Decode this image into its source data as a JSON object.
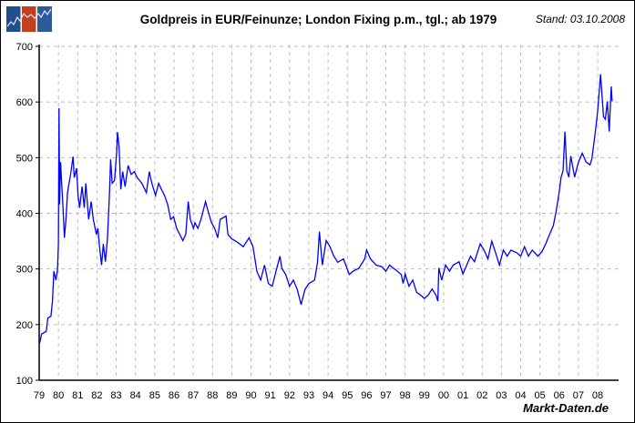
{
  "header": {
    "title": "Goldpreis in EUR/Feinunze; London Fixing p.m., tgl.; ab 1979",
    "stand": "Stand: 03.10.2008",
    "logo_colors": [
      "#1f4f8f",
      "#c0401f",
      "#2c5b9c"
    ]
  },
  "footer": {
    "brand": "Markt-Daten.de"
  },
  "chart_data": {
    "type": "line",
    "title": "Goldpreis in EUR/Feinunze; London Fixing p.m., tgl.; ab 1979",
    "xlabel": "",
    "ylabel": "",
    "xlim": [
      1979,
      2008.76
    ],
    "ylim": [
      100,
      700
    ],
    "grid": true,
    "line_color": "#0000ff",
    "y_ticks": [
      "100",
      "200",
      "300",
      "400",
      "500",
      "600",
      "700"
    ],
    "x_ticks": [
      "79",
      "80",
      "81",
      "82",
      "83",
      "84",
      "85",
      "86",
      "87",
      "88",
      "89",
      "90",
      "91",
      "92",
      "93",
      "94",
      "95",
      "96",
      "97",
      "98",
      "99",
      "00",
      "01",
      "02",
      "03",
      "04",
      "05",
      "06",
      "07",
      "08"
    ],
    "series": [
      {
        "x": [
          1979.02,
          1979.13,
          1979.37,
          1979.45,
          1979.61,
          1979.69,
          1979.76,
          1979.87,
          1979.95,
          1980.0,
          1980.03,
          1980.06,
          1980.11,
          1980.16,
          1980.24,
          1980.31,
          1980.39,
          1980.47,
          1980.55,
          1980.63,
          1980.76,
          1980.82,
          1980.94,
          1981.02,
          1981.1,
          1981.23,
          1981.34,
          1981.42,
          1981.57,
          1981.7,
          1981.81,
          1981.97,
          1982.05,
          1982.13,
          1982.24,
          1982.33,
          1982.44,
          1982.55,
          1982.65,
          1982.71,
          1982.79,
          1982.91,
          1983.02,
          1983.07,
          1983.15,
          1983.24,
          1983.34,
          1983.46,
          1983.62,
          1983.78,
          1983.94,
          1984.09,
          1984.33,
          1984.57,
          1984.72,
          1984.85,
          1985.04,
          1985.2,
          1985.35,
          1985.51,
          1985.67,
          1985.83,
          1985.98,
          1986.14,
          1986.3,
          1986.46,
          1986.61,
          1986.74,
          1986.85,
          1987.01,
          1987.09,
          1987.24,
          1987.4,
          1987.64,
          1987.8,
          1987.95,
          1988.11,
          1988.27,
          1988.4,
          1988.7,
          1988.8,
          1989.0,
          1989.3,
          1989.6,
          1989.9,
          1990.1,
          1990.3,
          1990.5,
          1990.7,
          1990.9,
          1991.1,
          1991.3,
          1991.5,
          1991.6,
          1991.8,
          1992.0,
          1992.2,
          1992.4,
          1992.6,
          1992.8,
          1993.0,
          1993.3,
          1993.45,
          1993.55,
          1993.7,
          1993.9,
          1994.1,
          1994.3,
          1994.5,
          1994.8,
          1995.1,
          1995.3,
          1995.6,
          1995.9,
          1996.0,
          1996.2,
          1996.5,
          1996.8,
          1997.0,
          1997.2,
          1997.4,
          1997.6,
          1997.8,
          1997.9,
          1998.0,
          1998.2,
          1998.4,
          1998.6,
          1998.8,
          1999.0,
          1999.2,
          1999.4,
          1999.6,
          1999.7,
          1999.75,
          1999.9,
          2000.1,
          2000.3,
          2000.5,
          2000.8,
          2001.0,
          2001.2,
          2001.4,
          2001.6,
          2001.9,
          2002.1,
          2002.3,
          2002.5,
          2002.7,
          2002.9,
          2003.1,
          2003.3,
          2003.5,
          2003.8,
          2004.0,
          2004.2,
          2004.4,
          2004.6,
          2004.9,
          2005.1,
          2005.3,
          2005.5,
          2005.7,
          2005.85,
          2006.0,
          2006.1,
          2006.2,
          2006.3,
          2006.4,
          2006.5,
          2006.6,
          2006.8,
          2007.0,
          2007.2,
          2007.4,
          2007.6,
          2007.7,
          2007.8,
          2007.9,
          2008.0,
          2008.1,
          2008.15,
          2008.3,
          2008.4,
          2008.5,
          2008.6,
          2008.7,
          2008.75
        ],
        "y": [
          166,
          183,
          188,
          212,
          215,
          242,
          296,
          280,
          299,
          345,
          589,
          416,
          492,
          459,
          410,
          356,
          389,
          437,
          454,
          470,
          502,
          464,
          481,
          432,
          410,
          448,
          410,
          454,
          389,
          421,
          389,
          362,
          373,
          340,
          307,
          345,
          313,
          356,
          437,
          497,
          454,
          459,
          508,
          546,
          519,
          443,
          475,
          448,
          486,
          470,
          475,
          464,
          454,
          437,
          475,
          454,
          432,
          454,
          443,
          432,
          416,
          389,
          394,
          373,
          362,
          351,
          362,
          421,
          389,
          373,
          383,
          373,
          389,
          421,
          400,
          383,
          373,
          356,
          389,
          395,
          362,
          354,
          348,
          340,
          356,
          340,
          296,
          280,
          307,
          274,
          269,
          296,
          323,
          301,
          290,
          269,
          280,
          263,
          236,
          263,
          274,
          280,
          312,
          367,
          307,
          351,
          340,
          323,
          312,
          318,
          290,
          296,
          301,
          318,
          334,
          318,
          307,
          304,
          296,
          307,
          301,
          296,
          290,
          274,
          291,
          269,
          280,
          258,
          253,
          247,
          253,
          264,
          253,
          242,
          302,
          280,
          307,
          296,
          307,
          313,
          291,
          307,
          323,
          313,
          345,
          334,
          318,
          350,
          329,
          307,
          334,
          323,
          334,
          329,
          323,
          340,
          323,
          334,
          323,
          331,
          345,
          362,
          378,
          405,
          438,
          465,
          476,
          547,
          476,
          465,
          503,
          465,
          492,
          508,
          492,
          487,
          498,
          525,
          552,
          585,
          628,
          650,
          574,
          569,
          601,
          547,
          628,
          601
        ]
      }
    ]
  }
}
